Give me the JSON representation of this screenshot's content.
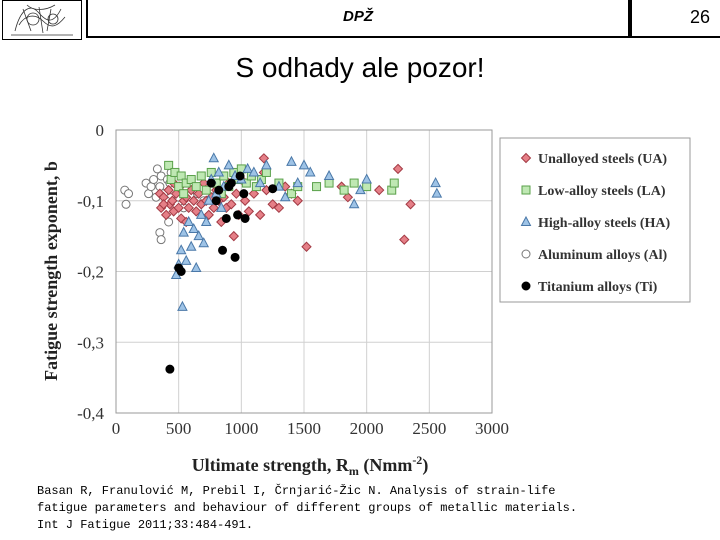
{
  "header": {
    "title": "DPŽ",
    "page_number": "26"
  },
  "slide": {
    "title": "S odhady ale pozor!"
  },
  "chart_data": {
    "type": "scatter",
    "title": "",
    "xlabel": "Ultimate strength, R",
    "xlabel_sub": "m",
    "xlabel_unit": " (Nmm",
    "xlabel_sup": "-2",
    "xlabel_end": ")",
    "ylabel": "Fatigue strength exponent, b",
    "xlim": [
      0,
      3000
    ],
    "ylim": [
      -0.4,
      0
    ],
    "x_ticks": [
      0,
      500,
      1000,
      1500,
      2000,
      2500,
      3000
    ],
    "x_tick_labels": [
      "0",
      "500",
      "1000",
      "1500",
      "2000",
      "2500",
      "3000"
    ],
    "y_ticks": [
      0,
      -0.1,
      -0.2,
      -0.3,
      -0.4
    ],
    "y_tick_labels": [
      "0",
      "-0,1",
      "-0,2",
      "-0,3",
      "-0,4"
    ],
    "grid": true,
    "legend_position": "right",
    "series": [
      {
        "name": "Unalloyed steels (UA)",
        "marker": "diamond",
        "fill": "#e57f87",
        "stroke": "#a33a44",
        "points": [
          [
            350,
            -0.09
          ],
          [
            360,
            -0.11
          ],
          [
            380,
            -0.095
          ],
          [
            400,
            -0.12
          ],
          [
            420,
            -0.085
          ],
          [
            430,
            -0.105
          ],
          [
            450,
            -0.1
          ],
          [
            460,
            -0.115
          ],
          [
            480,
            -0.09
          ],
          [
            500,
            -0.11
          ],
          [
            510,
            -0.08
          ],
          [
            520,
            -0.125
          ],
          [
            540,
            -0.1
          ],
          [
            560,
            -0.095
          ],
          [
            580,
            -0.11
          ],
          [
            600,
            -0.085
          ],
          [
            620,
            -0.1
          ],
          [
            640,
            -0.115
          ],
          [
            660,
            -0.09
          ],
          [
            680,
            -0.105
          ],
          [
            700,
            -0.075
          ],
          [
            720,
            -0.1
          ],
          [
            740,
            -0.12
          ],
          [
            760,
            -0.095
          ],
          [
            780,
            -0.11
          ],
          [
            800,
            -0.085
          ],
          [
            820,
            -0.1
          ],
          [
            840,
            -0.13
          ],
          [
            860,
            -0.095
          ],
          [
            880,
            -0.11
          ],
          [
            900,
            -0.075
          ],
          [
            920,
            -0.105
          ],
          [
            940,
            -0.15
          ],
          [
            960,
            -0.09
          ],
          [
            980,
            -0.12
          ],
          [
            1000,
            -0.07
          ],
          [
            1030,
            -0.1
          ],
          [
            1060,
            -0.115
          ],
          [
            1100,
            -0.09
          ],
          [
            1150,
            -0.12
          ],
          [
            1180,
            -0.06
          ],
          [
            1200,
            -0.085
          ],
          [
            1250,
            -0.105
          ],
          [
            1300,
            -0.11
          ],
          [
            1350,
            -0.08
          ],
          [
            1400,
            -0.09
          ],
          [
            1450,
            -0.1
          ],
          [
            1520,
            -0.165
          ],
          [
            1800,
            -0.08
          ],
          [
            1850,
            -0.095
          ],
          [
            2100,
            -0.085
          ],
          [
            2250,
            -0.055
          ],
          [
            2300,
            -0.155
          ],
          [
            2350,
            -0.105
          ],
          [
            1180,
            -0.04
          ],
          [
            380,
            -0.105
          ],
          [
            460,
            -0.075
          ],
          [
            560,
            -0.13
          ]
        ]
      },
      {
        "name": "Low-alloy steels (LA)",
        "marker": "square",
        "fill": "#bfe8b3",
        "stroke": "#5aa04a",
        "points": [
          [
            420,
            -0.05
          ],
          [
            440,
            -0.07
          ],
          [
            470,
            -0.06
          ],
          [
            500,
            -0.08
          ],
          [
            520,
            -0.065
          ],
          [
            540,
            -0.09
          ],
          [
            560,
            -0.075
          ],
          [
            600,
            -0.07
          ],
          [
            640,
            -0.08
          ],
          [
            680,
            -0.065
          ],
          [
            720,
            -0.085
          ],
          [
            760,
            -0.06
          ],
          [
            800,
            -0.075
          ],
          [
            840,
            -0.09
          ],
          [
            860,
            -0.065
          ],
          [
            900,
            -0.08
          ],
          [
            940,
            -0.06
          ],
          [
            980,
            -0.07
          ],
          [
            1000,
            -0.055
          ],
          [
            1040,
            -0.075
          ],
          [
            1080,
            -0.065
          ],
          [
            1120,
            -0.08
          ],
          [
            1160,
            -0.07
          ],
          [
            1200,
            -0.06
          ],
          [
            1300,
            -0.075
          ],
          [
            1400,
            -0.09
          ],
          [
            1450,
            -0.08
          ],
          [
            1600,
            -0.08
          ],
          [
            1700,
            -0.075
          ],
          [
            1900,
            -0.075
          ],
          [
            2000,
            -0.08
          ],
          [
            2200,
            -0.085
          ],
          [
            2220,
            -0.075
          ],
          [
            1820,
            -0.085
          ]
        ]
      },
      {
        "name": "High-alloy steels (HA)",
        "marker": "triangle",
        "fill": "#9ec3e6",
        "stroke": "#4a78a8",
        "points": [
          [
            480,
            -0.205
          ],
          [
            500,
            -0.19
          ],
          [
            520,
            -0.17
          ],
          [
            530,
            -0.25
          ],
          [
            540,
            -0.145
          ],
          [
            560,
            -0.185
          ],
          [
            580,
            -0.13
          ],
          [
            600,
            -0.165
          ],
          [
            620,
            -0.14
          ],
          [
            640,
            -0.195
          ],
          [
            660,
            -0.15
          ],
          [
            680,
            -0.12
          ],
          [
            700,
            -0.16
          ],
          [
            720,
            -0.13
          ],
          [
            740,
            -0.1
          ],
          [
            760,
            -0.07
          ],
          [
            780,
            -0.04
          ],
          [
            800,
            -0.09
          ],
          [
            820,
            -0.06
          ],
          [
            840,
            -0.11
          ],
          [
            860,
            -0.08
          ],
          [
            900,
            -0.05
          ],
          [
            950,
            -0.065
          ],
          [
            1000,
            -0.07
          ],
          [
            1050,
            -0.055
          ],
          [
            1100,
            -0.06
          ],
          [
            1150,
            -0.075
          ],
          [
            1200,
            -0.05
          ],
          [
            1300,
            -0.08
          ],
          [
            1350,
            -0.095
          ],
          [
            1400,
            -0.045
          ],
          [
            1450,
            -0.075
          ],
          [
            1500,
            -0.05
          ],
          [
            1550,
            -0.06
          ],
          [
            1700,
            -0.065
          ],
          [
            1900,
            -0.105
          ],
          [
            1950,
            -0.085
          ],
          [
            2000,
            -0.07
          ],
          [
            2550,
            -0.075
          ],
          [
            2560,
            -0.09
          ]
        ]
      },
      {
        "name": "Aluminum alloys (Al)",
        "marker": "circle-open",
        "fill": "#ffffff",
        "stroke": "#777777",
        "points": [
          [
            70,
            -0.085
          ],
          [
            80,
            -0.105
          ],
          [
            100,
            -0.09
          ],
          [
            240,
            -0.075
          ],
          [
            260,
            -0.09
          ],
          [
            280,
            -0.08
          ],
          [
            300,
            -0.07
          ],
          [
            320,
            -0.095
          ],
          [
            330,
            -0.055
          ],
          [
            350,
            -0.08
          ],
          [
            360,
            -0.065
          ],
          [
            380,
            -0.09
          ],
          [
            400,
            -0.1
          ],
          [
            410,
            -0.07
          ],
          [
            420,
            -0.13
          ],
          [
            440,
            -0.06
          ],
          [
            450,
            -0.085
          ],
          [
            500,
            -0.095
          ],
          [
            520,
            -0.065
          ],
          [
            540,
            -0.11
          ],
          [
            560,
            -0.08
          ],
          [
            600,
            -0.07
          ],
          [
            650,
            -0.09
          ],
          [
            700,
            -0.1
          ],
          [
            750,
            -0.085
          ],
          [
            350,
            -0.145
          ],
          [
            360,
            -0.155
          ],
          [
            430,
            -0.075
          ]
        ]
      },
      {
        "name": "Titanium alloys (Ti)",
        "marker": "circle-filled",
        "fill": "#000000",
        "stroke": "#000000",
        "points": [
          [
            430,
            -0.338
          ],
          [
            500,
            -0.195
          ],
          [
            520,
            -0.2
          ],
          [
            760,
            -0.075
          ],
          [
            800,
            -0.1
          ],
          [
            820,
            -0.085
          ],
          [
            850,
            -0.17
          ],
          [
            880,
            -0.125
          ],
          [
            900,
            -0.08
          ],
          [
            920,
            -0.075
          ],
          [
            950,
            -0.18
          ],
          [
            970,
            -0.12
          ],
          [
            990,
            -0.065
          ],
          [
            1020,
            -0.09
          ],
          [
            1030,
            -0.125
          ],
          [
            1250,
            -0.083
          ]
        ]
      }
    ]
  },
  "citation": {
    "line1": "Basan R, Franulović M, Prebil I, Črnjarić-Žic N. Analysis of strain-life",
    "line2": "fatigue parameters and behaviour of different groups of metallic materials.",
    "line3": "Int J Fatigue 2011;33:484-491."
  }
}
